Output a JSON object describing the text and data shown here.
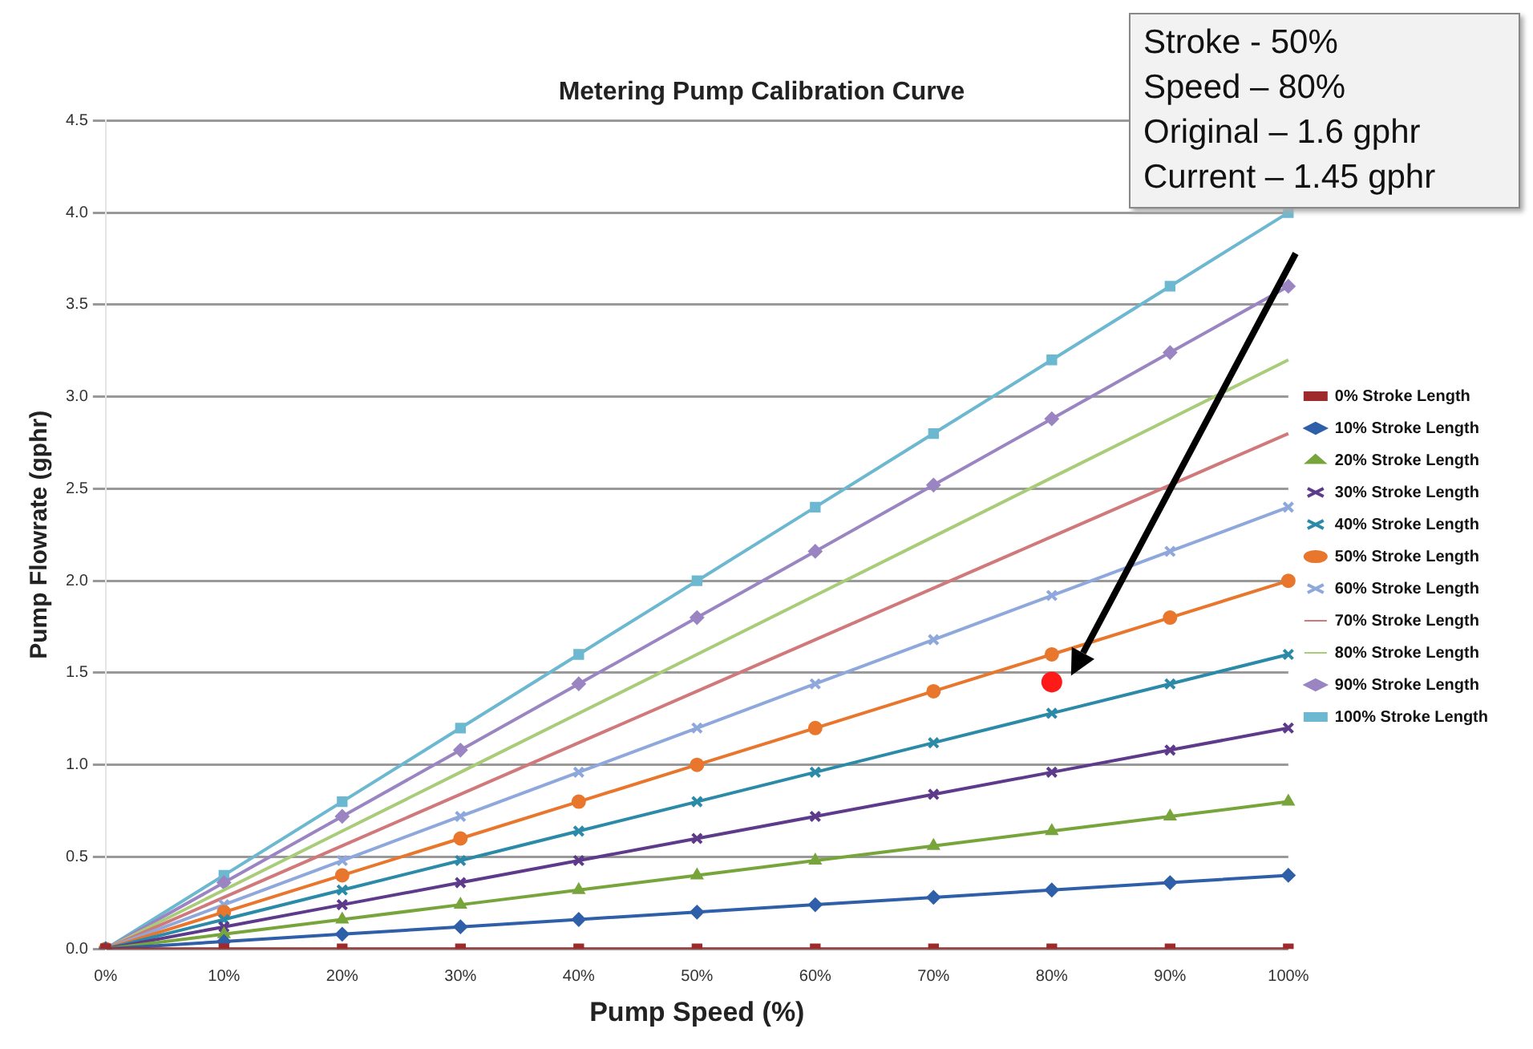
{
  "chart_data": {
    "type": "line",
    "title": "Metering Pump Calibration Curve",
    "xlabel": "Pump Speed (%)",
    "ylabel": "Pump Flowrate (gphr)",
    "categories": [
      "0%",
      "10%",
      "20%",
      "30%",
      "40%",
      "50%",
      "60%",
      "70%",
      "80%",
      "90%",
      "100%"
    ],
    "ylim": [
      0,
      4.5
    ],
    "yticks": [
      {
        "value": 0,
        "label": "0.0"
      },
      {
        "value": 0.5,
        "label": "0.5"
      },
      {
        "value": 1,
        "label": "1.0"
      },
      {
        "value": 1.5,
        "label": "1.5"
      },
      {
        "value": 2,
        "label": "2.0"
      },
      {
        "value": 2.5,
        "label": "2.5"
      },
      {
        "value": 3,
        "label": "3.0"
      },
      {
        "value": 3.5,
        "label": "3.5"
      },
      {
        "value": 4,
        "label": "4.0"
      },
      {
        "value": 4.5,
        "label": "4.5"
      }
    ],
    "grid": "y",
    "legend": "right",
    "series": [
      {
        "name": "0% Stroke Length",
        "color": "#9e2a2b",
        "marker": "square",
        "values": [
          0,
          0,
          0,
          0,
          0,
          0,
          0,
          0,
          0,
          0,
          0
        ]
      },
      {
        "name": "10% Stroke Length",
        "color": "#2e5fa8",
        "marker": "diamond",
        "values": [
          0,
          0.04,
          0.08,
          0.12,
          0.16,
          0.2,
          0.24,
          0.28,
          0.32,
          0.36,
          0.4
        ]
      },
      {
        "name": "20% Stroke Length",
        "color": "#77a53b",
        "marker": "triangle",
        "values": [
          0,
          0.08,
          0.16,
          0.24,
          0.32,
          0.4,
          0.48,
          0.56,
          0.64,
          0.72,
          0.8
        ]
      },
      {
        "name": "30% Stroke Length",
        "color": "#5e3a8a",
        "marker": "cross",
        "values": [
          0,
          0.12,
          0.24,
          0.36,
          0.48,
          0.6,
          0.72,
          0.84,
          0.96,
          1.08,
          1.2
        ]
      },
      {
        "name": "40% Stroke Length",
        "color": "#2a8aa8",
        "marker": "cross",
        "values": [
          0,
          0.16,
          0.32,
          0.48,
          0.64,
          0.8,
          0.96,
          1.12,
          1.28,
          1.44,
          1.6
        ]
      },
      {
        "name": "50% Stroke Length",
        "color": "#e8762c",
        "marker": "circle",
        "values": [
          0,
          0.2,
          0.4,
          0.6,
          0.8,
          1,
          1.2,
          1.4,
          1.6,
          1.8,
          2
        ]
      },
      {
        "name": "60% Stroke Length",
        "color": "#8fa8dc",
        "marker": "cross",
        "values": [
          0,
          0.24,
          0.48,
          0.72,
          0.96,
          1.2,
          1.44,
          1.68,
          1.92,
          2.16,
          2.4
        ]
      },
      {
        "name": "70% Stroke Length",
        "color": "#d0787a",
        "marker": "none",
        "values": [
          0,
          0.28,
          0.56,
          0.84,
          1.12,
          1.4,
          1.68,
          1.96,
          2.24,
          2.52,
          2.8
        ]
      },
      {
        "name": "80% Stroke Length",
        "color": "#a8cc78",
        "marker": "none",
        "values": [
          0,
          0.32,
          0.64,
          0.96,
          1.28,
          1.6,
          1.92,
          2.24,
          2.56,
          2.88,
          3.2
        ]
      },
      {
        "name": "90% Stroke Length",
        "color": "#9a85c2",
        "marker": "diamond",
        "values": [
          0,
          0.36,
          0.72,
          1.08,
          1.44,
          1.8,
          2.16,
          2.52,
          2.88,
          3.24,
          3.6
        ]
      },
      {
        "name": "100% Stroke Length",
        "color": "#6cb8d0",
        "marker": "square",
        "values": [
          0,
          0.4,
          0.8,
          1.2,
          1.6,
          2,
          2.4,
          2.8,
          3.2,
          3.6,
          4
        ]
      },
      {
        "type": "scatter",
        "color": "#ff1a1a",
        "marker": "circle",
        "x": [
          "80%"
        ],
        "values": [
          1.45
        ]
      }
    ],
    "annotations": [
      "Stroke - 50%\nSpeed – 80%\nOriginal – 1.6 gphr\nCurrent – 1.45 gphr"
    ]
  }
}
